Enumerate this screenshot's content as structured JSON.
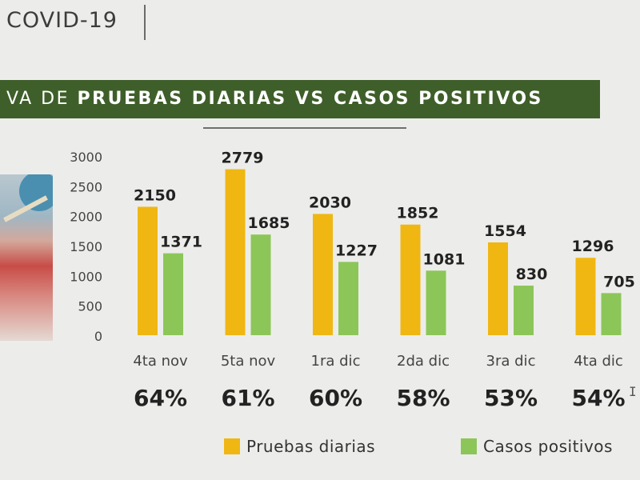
{
  "header": {
    "title": "COVID-19"
  },
  "banner": {
    "prefix": "VA DE",
    "bold": "PRUEBAS DIARIAS VS CASOS POSITIVOS"
  },
  "colors": {
    "pruebas": "#f0b713",
    "positivos": "#8cc658",
    "banner": "#3f5f2a"
  },
  "chart_data": {
    "type": "bar",
    "categories": [
      "4ta nov",
      "5ta nov",
      "1ra dic",
      "2da dic",
      "3ra dic",
      "4ta dic"
    ],
    "series": [
      {
        "name": "Pruebas diarias",
        "values": [
          2150,
          2779,
          2030,
          1852,
          1554,
          1296
        ]
      },
      {
        "name": "Casos positivos",
        "values": [
          1371,
          1685,
          1227,
          1081,
          830,
          705
        ]
      }
    ],
    "percentages": [
      "64%",
      "61%",
      "60%",
      "58%",
      "53%",
      "54%"
    ],
    "yticks": [
      "0",
      "500",
      "1000",
      "1500",
      "2000",
      "2500",
      "3000"
    ],
    "ylim": [
      0,
      3000
    ],
    "legend": {
      "position": "bottom"
    }
  }
}
